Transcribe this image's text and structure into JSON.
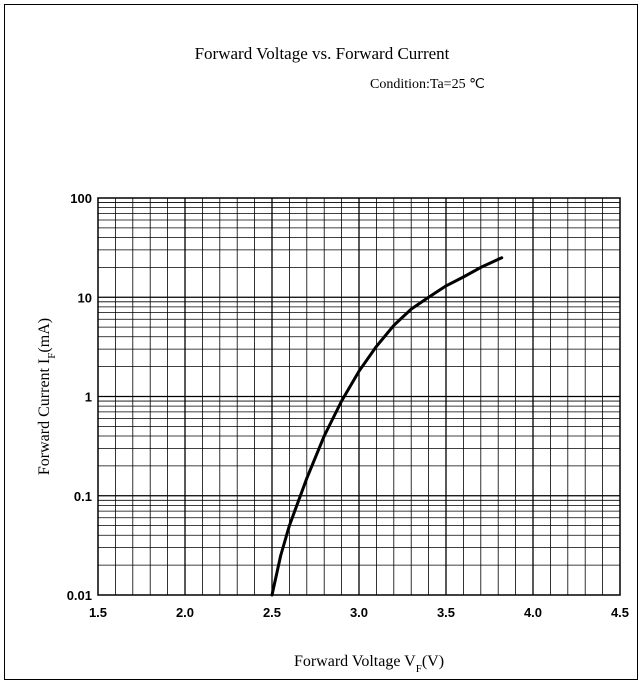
{
  "chart_data": {
    "type": "line",
    "title": "Forward Voltage vs. Forward Current",
    "subtitle": "Condition:Ta=25 ℃",
    "xlabel": "Forward Voltage  V",
    "xlabel_sub": "F",
    "xlabel_unit": "(V)",
    "ylabel": "Forward Current  I",
    "ylabel_sub": "F",
    "ylabel_unit": "(mA)",
    "xlim": [
      1.5,
      4.5
    ],
    "ylim": [
      0.01,
      100
    ],
    "yscale": "log",
    "grid": true,
    "x_ticks": [
      "1.5",
      "2.0",
      "2.5",
      "3.0",
      "3.5",
      "4.0",
      "4.5"
    ],
    "y_ticks": [
      "100",
      "10",
      "1",
      "0.1",
      "0.01"
    ],
    "colors": {
      "line": "#000000",
      "grid": "#000000",
      "background": "#ffffff"
    },
    "series": [
      {
        "x": [
          2.5,
          2.55,
          2.6,
          2.7,
          2.8,
          2.9,
          3.0,
          3.1,
          3.2,
          3.3,
          3.4,
          3.5,
          3.6,
          3.7,
          3.82
        ],
        "y": [
          0.01,
          0.025,
          0.05,
          0.15,
          0.4,
          0.9,
          1.8,
          3.2,
          5.2,
          7.6,
          10,
          13,
          16,
          20,
          25
        ]
      }
    ]
  }
}
